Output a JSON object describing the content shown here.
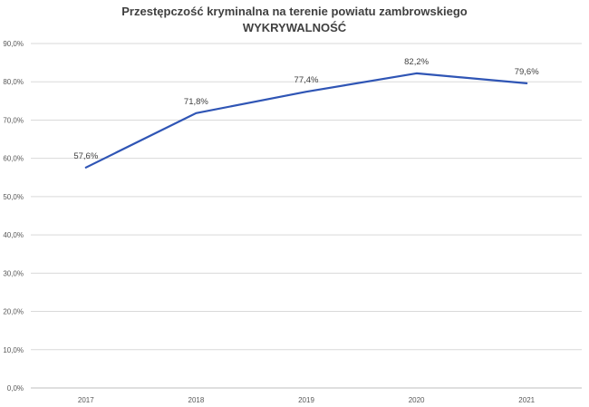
{
  "chart_data": {
    "type": "line",
    "title": "Przestępczość kryminalna na terenie powiatu zambrowskiego",
    "subtitle": "WYKRYWALNOŚĆ",
    "xlabel": "",
    "ylabel": "",
    "categories": [
      "2017",
      "2018",
      "2019",
      "2020",
      "2021"
    ],
    "series": [
      {
        "values": [
          57.6,
          71.8,
          77.4,
          82.2,
          79.6
        ],
        "data_labels": [
          "57,6%",
          "71,8%",
          "77,4%",
          "82,2%",
          "79,6%"
        ],
        "color": "#2f55b5"
      }
    ],
    "ylim": [
      0,
      90
    ],
    "yticks": [
      0,
      10,
      20,
      30,
      40,
      50,
      60,
      70,
      80,
      90
    ],
    "ytick_labels": [
      "0,0%",
      "10,0%",
      "20,0%",
      "30,0%",
      "40,0%",
      "50,0%",
      "60,0%",
      "70,0%",
      "80,0%",
      "90,0%"
    ],
    "grid": true,
    "legend": "none",
    "colors": {
      "line": "#2f55b5",
      "grid": "#d9d9d9",
      "text": "#404040"
    }
  }
}
